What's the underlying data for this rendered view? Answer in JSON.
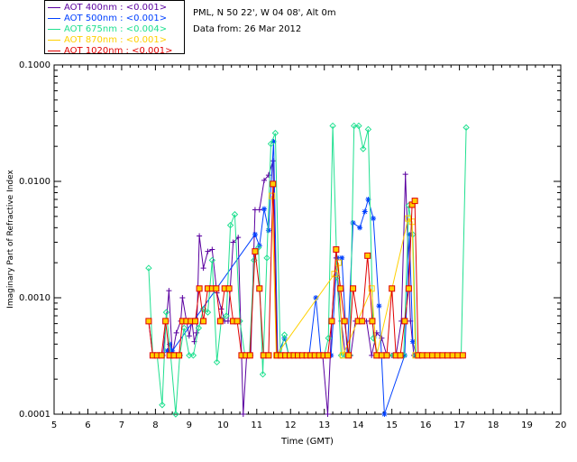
{
  "info": {
    "site": "PML, N 50 22', W 04 08', Alt 0m",
    "date": "Data from: 26 Mar 2012"
  },
  "chart_data": {
    "type": "line",
    "xlabel": "Time (GMT)",
    "ylabel": "Imaginary Part of Refractive Index",
    "xlim": [
      5,
      20
    ],
    "ylim": [
      0.0001,
      0.1
    ],
    "yscale": "log",
    "xticks": [
      "5",
      "6",
      "7",
      "8",
      "9",
      "10",
      "11",
      "12",
      "13",
      "14",
      "15",
      "16",
      "17",
      "18",
      "19",
      "20"
    ],
    "yticks": [
      "0.0001",
      "0.0010",
      "0.0100",
      "0.1000"
    ],
    "legend_position": "top-left",
    "series": [
      {
        "name": "AOT  400nm : <0.001>",
        "color": "#5a00a0",
        "marker": "plus",
        "points": [
          [
            7.8,
            0.00063
          ],
          [
            7.92,
            0.00032
          ],
          [
            8.08,
            0.00032
          ],
          [
            8.22,
            0.00032
          ],
          [
            8.32,
            0.00063
          ],
          [
            8.4,
            0.00115
          ],
          [
            8.5,
            0.00032
          ],
          [
            8.62,
            0.0005
          ],
          [
            8.75,
            0.00063
          ],
          [
            8.8,
            0.001
          ],
          [
            8.92,
            0.00063
          ],
          [
            9.0,
            0.00047
          ],
          [
            9.08,
            0.00063
          ],
          [
            9.15,
            0.00042
          ],
          [
            9.22,
            0.0005
          ],
          [
            9.3,
            0.0034
          ],
          [
            9.42,
            0.0018
          ],
          [
            9.55,
            0.0025
          ],
          [
            9.68,
            0.0026
          ],
          [
            9.82,
            0.0011
          ],
          [
            9.95,
            0.0008
          ],
          [
            10.05,
            0.00063
          ],
          [
            10.15,
            0.00063
          ],
          [
            10.3,
            0.003
          ],
          [
            10.45,
            0.0033
          ],
          [
            10.6,
            0.0001
          ],
          [
            10.7,
            0.00032
          ],
          [
            10.82,
            0.00032
          ],
          [
            10.95,
            0.0057
          ],
          [
            11.08,
            0.0057
          ],
          [
            11.22,
            0.0102
          ],
          [
            11.35,
            0.0113
          ],
          [
            11.48,
            0.015
          ],
          [
            11.6,
            0.00032
          ],
          [
            11.75,
            0.00032
          ],
          [
            11.9,
            0.00032
          ],
          [
            12.05,
            0.00032
          ],
          [
            12.2,
            0.00032
          ],
          [
            12.35,
            0.00032
          ],
          [
            12.5,
            0.00032
          ],
          [
            12.65,
            0.00032
          ],
          [
            12.8,
            0.00032
          ],
          [
            12.95,
            0.00032
          ],
          [
            13.1,
            0.0001
          ],
          [
            13.22,
            0.00063
          ],
          [
            13.35,
            0.0022
          ],
          [
            13.5,
            0.00063
          ],
          [
            13.62,
            0.00032
          ],
          [
            13.78,
            0.00032
          ],
          [
            13.92,
            0.00063
          ],
          [
            14.08,
            0.00063
          ],
          [
            14.25,
            0.00063
          ],
          [
            14.4,
            0.00032
          ],
          [
            14.55,
            0.0005
          ],
          [
            14.7,
            0.00045
          ],
          [
            14.85,
            0.00032
          ],
          [
            15.0,
            0.00032
          ],
          [
            15.12,
            0.00032
          ],
          [
            15.28,
            0.00063
          ],
          [
            15.4,
            0.0115
          ],
          [
            15.55,
            0.00063
          ],
          [
            15.65,
            0.00032
          ],
          [
            15.78,
            0.00032
          ],
          [
            15.9,
            0.00032
          ],
          [
            16.05,
            0.00032
          ],
          [
            16.2,
            0.00032
          ],
          [
            16.35,
            0.00032
          ],
          [
            16.5,
            0.00032
          ],
          [
            16.65,
            0.00032
          ],
          [
            16.8,
            0.00032
          ],
          [
            16.95,
            0.00032
          ],
          [
            17.1,
            0.00032
          ]
        ]
      },
      {
        "name": "AOT  500nm : <0.001>",
        "color": "#0040ff",
        "marker": "star",
        "points": [
          [
            8.35,
            0.00035
          ],
          [
            8.42,
            0.0004
          ],
          [
            8.5,
            0.00035
          ],
          [
            10.95,
            0.0035
          ],
          [
            11.08,
            0.0028
          ],
          [
            11.22,
            0.0058
          ],
          [
            11.35,
            0.0038
          ],
          [
            11.5,
            0.022
          ],
          [
            11.62,
            0.00032
          ],
          [
            11.82,
            0.00045
          ],
          [
            11.95,
            0.00032
          ],
          [
            12.55,
            0.00032
          ],
          [
            12.75,
            0.001
          ],
          [
            12.9,
            0.00032
          ],
          [
            13.05,
            0.00032
          ],
          [
            13.2,
            0.00032
          ],
          [
            13.38,
            0.0022
          ],
          [
            13.52,
            0.0022
          ],
          [
            13.68,
            0.00032
          ],
          [
            13.85,
            0.0044
          ],
          [
            14.05,
            0.004
          ],
          [
            14.2,
            0.0055
          ],
          [
            14.3,
            0.007
          ],
          [
            14.45,
            0.0048
          ],
          [
            14.62,
            0.00085
          ],
          [
            14.78,
            0.0001
          ],
          [
            15.38,
            0.00032
          ],
          [
            15.52,
            0.0035
          ],
          [
            15.62,
            0.00042
          ],
          [
            15.72,
            0.00032
          ]
        ]
      },
      {
        "name": "AOT  675nm : <0.004>",
        "color": "#20e090",
        "marker": "diamond",
        "points": [
          [
            7.8,
            0.0018
          ],
          [
            7.92,
            0.00032
          ],
          [
            8.05,
            0.00032
          ],
          [
            8.2,
            0.00012
          ],
          [
            8.32,
            0.00075
          ],
          [
            8.45,
            0.00032
          ],
          [
            8.6,
            0.0001
          ],
          [
            8.72,
            0.00032
          ],
          [
            8.85,
            0.00055
          ],
          [
            9.0,
            0.00032
          ],
          [
            9.12,
            0.00032
          ],
          [
            9.28,
            0.00055
          ],
          [
            9.42,
            0.0008
          ],
          [
            9.55,
            0.00075
          ],
          [
            9.68,
            0.0021
          ],
          [
            9.82,
            0.00028
          ],
          [
            9.95,
            0.00065
          ],
          [
            10.1,
            0.0007
          ],
          [
            10.22,
            0.0042
          ],
          [
            10.35,
            0.0052
          ],
          [
            10.5,
            0.00063
          ],
          [
            10.65,
            0.00032
          ],
          [
            10.78,
            0.00032
          ],
          [
            10.92,
            0.0021
          ],
          [
            11.05,
            0.0027
          ],
          [
            11.18,
            0.00022
          ],
          [
            11.3,
            0.0022
          ],
          [
            11.42,
            0.021
          ],
          [
            11.55,
            0.026
          ],
          [
            11.7,
            0.00032
          ],
          [
            11.82,
            0.00048
          ],
          [
            11.95,
            0.00032
          ],
          [
            12.1,
            0.00032
          ],
          [
            12.25,
            0.00032
          ],
          [
            12.4,
            0.00032
          ],
          [
            12.55,
            0.00032
          ],
          [
            12.7,
            0.00032
          ],
          [
            12.85,
            0.00032
          ],
          [
            13.0,
            0.00032
          ],
          [
            13.12,
            0.00045
          ],
          [
            13.25,
            0.03
          ],
          [
            13.38,
            0.0015
          ],
          [
            13.5,
            0.00032
          ],
          [
            13.62,
            0.00032
          ],
          [
            13.75,
            0.00032
          ],
          [
            13.88,
            0.03
          ],
          [
            14.02,
            0.03
          ],
          [
            14.15,
            0.019
          ],
          [
            14.3,
            0.028
          ],
          [
            14.45,
            0.00045
          ],
          [
            14.6,
            0.00032
          ],
          [
            14.75,
            0.00032
          ],
          [
            14.9,
            0.00032
          ],
          [
            15.05,
            0.00032
          ],
          [
            15.2,
            0.00032
          ],
          [
            15.35,
            0.00032
          ],
          [
            15.5,
            0.0062
          ],
          [
            15.62,
            0.0035
          ],
          [
            15.72,
            0.00032
          ],
          [
            15.85,
            0.00032
          ],
          [
            16.0,
            0.00032
          ],
          [
            16.15,
            0.00032
          ],
          [
            16.3,
            0.00032
          ],
          [
            16.45,
            0.00032
          ],
          [
            16.6,
            0.00032
          ],
          [
            16.75,
            0.00032
          ],
          [
            16.9,
            0.00032
          ],
          [
            17.05,
            0.00032
          ],
          [
            17.2,
            0.029
          ]
        ]
      },
      {
        "name": "AOT  870nm : <0.001>",
        "color": "#ffd000",
        "marker": "square",
        "points": [
          [
            11.45,
            0.0075
          ],
          [
            11.58,
            0.00032
          ],
          [
            13.3,
            0.0016
          ],
          [
            13.42,
            0.002
          ],
          [
            13.55,
            0.00032
          ],
          [
            14.4,
            0.0012
          ],
          [
            14.55,
            0.00032
          ],
          [
            15.48,
            0.0048
          ],
          [
            15.6,
            0.0045
          ],
          [
            15.7,
            0.00032
          ]
        ]
      },
      {
        "name": "AOT 1020nm : <0.001>",
        "color": "#e00000",
        "marker": "square",
        "points": [
          [
            7.8,
            0.00063
          ],
          [
            7.92,
            0.00032
          ],
          [
            8.05,
            0.00032
          ],
          [
            8.18,
            0.00032
          ],
          [
            8.3,
            0.00063
          ],
          [
            8.42,
            0.00032
          ],
          [
            8.55,
            0.00032
          ],
          [
            8.7,
            0.00032
          ],
          [
            8.8,
            0.00063
          ],
          [
            8.92,
            0.00063
          ],
          [
            9.05,
            0.00063
          ],
          [
            9.18,
            0.00063
          ],
          [
            9.3,
            0.0012
          ],
          [
            9.42,
            0.00063
          ],
          [
            9.55,
            0.0012
          ],
          [
            9.68,
            0.0012
          ],
          [
            9.8,
            0.0012
          ],
          [
            9.92,
            0.00063
          ],
          [
            10.05,
            0.0012
          ],
          [
            10.18,
            0.0012
          ],
          [
            10.3,
            0.00063
          ],
          [
            10.42,
            0.00063
          ],
          [
            10.55,
            0.00032
          ],
          [
            10.68,
            0.00032
          ],
          [
            10.8,
            0.00032
          ],
          [
            10.95,
            0.0025
          ],
          [
            11.08,
            0.0012
          ],
          [
            11.2,
            0.00032
          ],
          [
            11.35,
            0.00032
          ],
          [
            11.48,
            0.0095
          ],
          [
            11.6,
            0.00032
          ],
          [
            11.72,
            0.00032
          ],
          [
            11.85,
            0.00032
          ],
          [
            11.98,
            0.00032
          ],
          [
            12.1,
            0.00032
          ],
          [
            12.22,
            0.00032
          ],
          [
            12.35,
            0.00032
          ],
          [
            12.48,
            0.00032
          ],
          [
            12.6,
            0.00032
          ],
          [
            12.72,
            0.00032
          ],
          [
            12.85,
            0.00032
          ],
          [
            12.98,
            0.00032
          ],
          [
            13.1,
            0.00032
          ],
          [
            13.22,
            0.00063
          ],
          [
            13.35,
            0.0026
          ],
          [
            13.48,
            0.0012
          ],
          [
            13.6,
            0.00063
          ],
          [
            13.72,
            0.00032
          ],
          [
            13.85,
            0.0012
          ],
          [
            14.0,
            0.00063
          ],
          [
            14.12,
            0.00063
          ],
          [
            14.28,
            0.0023
          ],
          [
            14.42,
            0.00063
          ],
          [
            14.55,
            0.00032
          ],
          [
            14.7,
            0.00032
          ],
          [
            14.85,
            0.00032
          ],
          [
            15.0,
            0.0012
          ],
          [
            15.12,
            0.00032
          ],
          [
            15.25,
            0.00032
          ],
          [
            15.38,
            0.00063
          ],
          [
            15.5,
            0.0012
          ],
          [
            15.6,
            0.0063
          ],
          [
            15.68,
            0.0068
          ],
          [
            15.78,
            0.00032
          ],
          [
            15.9,
            0.00032
          ],
          [
            16.05,
            0.00032
          ],
          [
            16.2,
            0.00032
          ],
          [
            16.35,
            0.00032
          ],
          [
            16.5,
            0.00032
          ],
          [
            16.65,
            0.00032
          ],
          [
            16.8,
            0.00032
          ],
          [
            16.95,
            0.00032
          ],
          [
            17.1,
            0.00032
          ]
        ]
      }
    ]
  }
}
